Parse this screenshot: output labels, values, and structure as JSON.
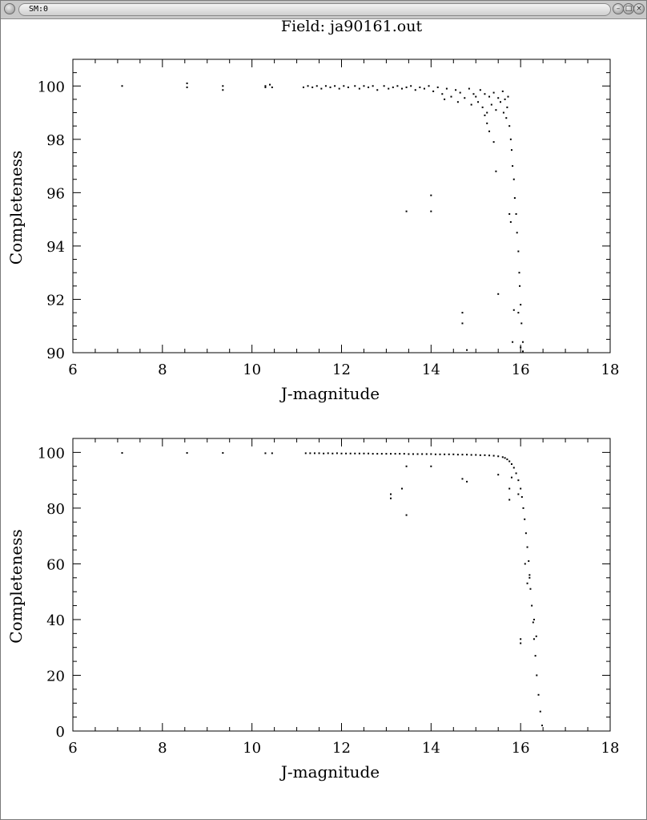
{
  "window": {
    "title": "SM:0",
    "buttons": [
      {
        "name": "minimize-button",
        "glyph": "–"
      },
      {
        "name": "maximize-button",
        "glyph": "□"
      },
      {
        "name": "close-button",
        "glyph": "×"
      }
    ]
  },
  "page_title": "Field: ja90161.out",
  "chart_data": [
    {
      "type": "scatter",
      "xlabel": "J-magnitude",
      "ylabel": "Completeness",
      "xlim": [
        6,
        18
      ],
      "ylim": [
        90,
        101
      ],
      "xticks": [
        6,
        8,
        10,
        12,
        14,
        16,
        18
      ],
      "yticks": [
        90,
        92,
        94,
        96,
        98,
        100
      ],
      "marker_color": "#000000",
      "grid": false,
      "points": [
        [
          7.1,
          100
        ],
        [
          8.55,
          100.1
        ],
        [
          8.55,
          99.95
        ],
        [
          9.35,
          100
        ],
        [
          9.35,
          99.85
        ],
        [
          10.3,
          99.95
        ],
        [
          10.3,
          100
        ],
        [
          10.4,
          100.05
        ],
        [
          10.45,
          99.95
        ],
        [
          11.15,
          99.95
        ],
        [
          11.25,
          100
        ],
        [
          11.35,
          99.95
        ],
        [
          11.45,
          100
        ],
        [
          11.55,
          99.9
        ],
        [
          11.65,
          100
        ],
        [
          11.75,
          99.95
        ],
        [
          11.85,
          100
        ],
        [
          11.95,
          99.9
        ],
        [
          12.05,
          100
        ],
        [
          12.15,
          99.95
        ],
        [
          12.3,
          100
        ],
        [
          12.4,
          99.9
        ],
        [
          12.5,
          100
        ],
        [
          12.6,
          99.95
        ],
        [
          12.7,
          100
        ],
        [
          12.8,
          99.85
        ],
        [
          12.95,
          100
        ],
        [
          13.05,
          99.9
        ],
        [
          13.15,
          99.95
        ],
        [
          13.25,
          100
        ],
        [
          13.35,
          99.9
        ],
        [
          13.45,
          99.95
        ],
        [
          13.55,
          100
        ],
        [
          13.65,
          99.85
        ],
        [
          13.75,
          99.95
        ],
        [
          13.85,
          99.9
        ],
        [
          13.95,
          100
        ],
        [
          14.05,
          99.8
        ],
        [
          14.15,
          99.95
        ],
        [
          14.25,
          99.7
        ],
        [
          14.35,
          99.9
        ],
        [
          14.45,
          99.6
        ],
        [
          14.55,
          99.85
        ],
        [
          14.65,
          99.75
        ],
        [
          14.75,
          99.55
        ],
        [
          14.85,
          99.9
        ],
        [
          14.95,
          99.7
        ],
        [
          15.05,
          99.4
        ],
        [
          15.1,
          99.85
        ],
        [
          15.15,
          99.2
        ],
        [
          15.2,
          99.7
        ],
        [
          15.25,
          99.0
        ],
        [
          15.3,
          99.6
        ],
        [
          15.35,
          99.3
        ],
        [
          15.4,
          99.75
        ],
        [
          15.45,
          99.1
        ],
        [
          15.5,
          99.55
        ],
        [
          15.55,
          99.4
        ],
        [
          15.6,
          99.8
        ],
        [
          15.62,
          99.0
        ],
        [
          15.65,
          99.5
        ],
        [
          15.68,
          98.8
        ],
        [
          15.7,
          99.2
        ],
        [
          15.72,
          99.6
        ],
        [
          15.75,
          98.5
        ],
        [
          15.78,
          98.0
        ],
        [
          15.8,
          97.6
        ],
        [
          15.82,
          97.0
        ],
        [
          15.85,
          96.5
        ],
        [
          15.87,
          95.8
        ],
        [
          15.9,
          95.2
        ],
        [
          15.92,
          94.5
        ],
        [
          15.95,
          93.8
        ],
        [
          15.97,
          93.0
        ],
        [
          15.98,
          92.5
        ],
        [
          16.0,
          91.8
        ],
        [
          16.02,
          91.1
        ],
        [
          16.05,
          90.4
        ],
        [
          14.3,
          99.5
        ],
        [
          14.6,
          99.4
        ],
        [
          14.9,
          99.3
        ],
        [
          15.0,
          99.6
        ],
        [
          15.2,
          98.9
        ],
        [
          15.25,
          98.6
        ],
        [
          15.3,
          98.3
        ],
        [
          15.4,
          97.9
        ],
        [
          15.45,
          96.8
        ],
        [
          13.45,
          95.3
        ],
        [
          14.0,
          95.9
        ],
        [
          14.0,
          95.3
        ],
        [
          14.7,
          91.5
        ],
        [
          14.7,
          91.1
        ],
        [
          14.8,
          90.1
        ],
        [
          15.5,
          92.2
        ],
        [
          15.75,
          95.2
        ],
        [
          15.78,
          94.9
        ],
        [
          15.85,
          91.6
        ],
        [
          15.95,
          91.5
        ],
        [
          15.82,
          90.4
        ],
        [
          16.0,
          90.2
        ],
        [
          16.05,
          90.05
        ]
      ]
    },
    {
      "type": "scatter",
      "xlabel": "J-magnitude",
      "ylabel": "Completeness",
      "xlim": [
        6,
        18
      ],
      "ylim": [
        0,
        105
      ],
      "xticks": [
        6,
        8,
        10,
        12,
        14,
        16,
        18
      ],
      "yticks": [
        0,
        20,
        40,
        60,
        80,
        100
      ],
      "marker_color": "#000000",
      "grid": false,
      "points": [
        [
          7.1,
          99.8
        ],
        [
          8.55,
          99.8
        ],
        [
          9.35,
          99.8
        ],
        [
          10.3,
          99.7
        ],
        [
          10.45,
          99.7
        ],
        [
          11.2,
          99.7
        ],
        [
          11.3,
          99.7
        ],
        [
          11.4,
          99.7
        ],
        [
          11.5,
          99.7
        ],
        [
          11.6,
          99.6
        ],
        [
          11.7,
          99.7
        ],
        [
          11.8,
          99.6
        ],
        [
          11.9,
          99.7
        ],
        [
          12.0,
          99.6
        ],
        [
          12.1,
          99.6
        ],
        [
          12.2,
          99.6
        ],
        [
          12.3,
          99.6
        ],
        [
          12.4,
          99.6
        ],
        [
          12.5,
          99.6
        ],
        [
          12.6,
          99.6
        ],
        [
          12.7,
          99.5
        ],
        [
          12.8,
          99.5
        ],
        [
          12.9,
          99.5
        ],
        [
          13.0,
          99.5
        ],
        [
          13.1,
          99.5
        ],
        [
          13.2,
          99.5
        ],
        [
          13.3,
          99.5
        ],
        [
          13.4,
          99.5
        ],
        [
          13.5,
          99.4
        ],
        [
          13.6,
          99.4
        ],
        [
          13.7,
          99.4
        ],
        [
          13.8,
          99.4
        ],
        [
          13.9,
          99.4
        ],
        [
          14.0,
          99.4
        ],
        [
          14.1,
          99.3
        ],
        [
          14.2,
          99.3
        ],
        [
          14.3,
          99.3
        ],
        [
          14.4,
          99.3
        ],
        [
          14.5,
          99.3
        ],
        [
          14.6,
          99.2
        ],
        [
          14.7,
          99.2
        ],
        [
          14.8,
          99.2
        ],
        [
          14.9,
          99.1
        ],
        [
          15.0,
          99.1
        ],
        [
          15.1,
          99.0
        ],
        [
          15.2,
          99.0
        ],
        [
          15.3,
          98.9
        ],
        [
          15.4,
          98.8
        ],
        [
          15.5,
          98.6
        ],
        [
          15.6,
          98.3
        ],
        [
          15.65,
          98.0
        ],
        [
          15.7,
          97.5
        ],
        [
          15.75,
          96.8
        ],
        [
          15.8,
          95.8
        ],
        [
          15.85,
          94.5
        ],
        [
          15.9,
          92.5
        ],
        [
          15.95,
          90.0
        ],
        [
          16.0,
          87.0
        ],
        [
          16.03,
          84.0
        ],
        [
          16.06,
          80.0
        ],
        [
          16.09,
          76.0
        ],
        [
          16.12,
          71.0
        ],
        [
          16.15,
          66.0
        ],
        [
          16.18,
          61.0
        ],
        [
          16.2,
          56.0
        ],
        [
          16.22,
          51.0
        ],
        [
          16.25,
          45.0
        ],
        [
          16.28,
          39.0
        ],
        [
          16.3,
          33.0
        ],
        [
          16.33,
          27.0
        ],
        [
          16.36,
          20.0
        ],
        [
          16.4,
          13.0
        ],
        [
          16.44,
          7.0
        ],
        [
          16.48,
          2.0
        ],
        [
          13.1,
          85.0
        ],
        [
          13.1,
          83.5
        ],
        [
          13.35,
          87.0
        ],
        [
          13.45,
          95.0
        ],
        [
          13.45,
          77.5
        ],
        [
          14.0,
          95.0
        ],
        [
          14.7,
          90.5
        ],
        [
          14.8,
          89.5
        ],
        [
          15.5,
          92.0
        ],
        [
          15.75,
          87.0
        ],
        [
          15.75,
          83.0
        ],
        [
          15.8,
          91.0
        ],
        [
          15.95,
          85.0
        ],
        [
          16.0,
          33.0
        ],
        [
          16.0,
          31.5
        ],
        [
          16.15,
          53.0
        ],
        [
          16.2,
          55.0
        ],
        [
          16.1,
          60.0
        ],
        [
          16.3,
          40.0
        ],
        [
          16.35,
          34.0
        ]
      ]
    }
  ]
}
